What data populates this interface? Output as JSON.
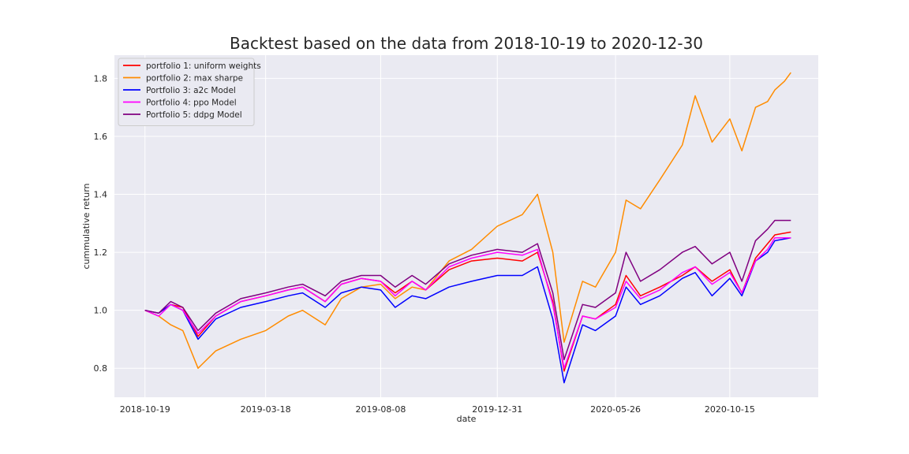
{
  "chart_data": {
    "type": "line",
    "title": "Backtest based on the data from 2018-10-19 to 2020-12-30",
    "xlabel": "date",
    "ylabel": "cummulative return",
    "ylim": [
      0.7,
      1.88
    ],
    "x_date_range": [
      "2018-10-19",
      "2020-12-30"
    ],
    "xlim": [
      "2018-09-11",
      "2021-02-02"
    ],
    "x_ticks": [
      "2018-10-19",
      "2019-03-18",
      "2019-08-08",
      "2019-12-31",
      "2020-05-26",
      "2020-10-15"
    ],
    "y_ticks": [
      0.8,
      1.0,
      1.2,
      1.4,
      1.6,
      1.8
    ],
    "grid": true,
    "legend_position": "top-left",
    "background": "#eaeaf2",
    "series": [
      {
        "name": "portfolio 1: uniform weights",
        "color": "#ff0000",
        "points": [
          [
            "2018-10-19",
            1.0
          ],
          [
            "2018-11-05",
            0.99
          ],
          [
            "2018-11-20",
            1.02
          ],
          [
            "2018-12-05",
            1.01
          ],
          [
            "2018-12-24",
            0.91
          ],
          [
            "2019-01-15",
            0.98
          ],
          [
            "2019-02-15",
            1.03
          ],
          [
            "2019-03-18",
            1.05
          ],
          [
            "2019-04-15",
            1.07
          ],
          [
            "2019-05-03",
            1.08
          ],
          [
            "2019-05-31",
            1.03
          ],
          [
            "2019-06-20",
            1.09
          ],
          [
            "2019-07-15",
            1.11
          ],
          [
            "2019-08-08",
            1.1
          ],
          [
            "2019-08-26",
            1.06
          ],
          [
            "2019-09-16",
            1.1
          ],
          [
            "2019-10-03",
            1.07
          ],
          [
            "2019-11-01",
            1.14
          ],
          [
            "2019-11-29",
            1.17
          ],
          [
            "2019-12-31",
            1.18
          ],
          [
            "2020-01-31",
            1.17
          ],
          [
            "2020-02-19",
            1.2
          ],
          [
            "2020-03-09",
            1.03
          ],
          [
            "2020-03-23",
            0.79
          ],
          [
            "2020-04-15",
            0.98
          ],
          [
            "2020-05-01",
            0.97
          ],
          [
            "2020-05-26",
            1.02
          ],
          [
            "2020-06-08",
            1.12
          ],
          [
            "2020-06-26",
            1.05
          ],
          [
            "2020-07-20",
            1.08
          ],
          [
            "2020-08-17",
            1.12
          ],
          [
            "2020-09-02",
            1.15
          ],
          [
            "2020-09-23",
            1.1
          ],
          [
            "2020-10-15",
            1.14
          ],
          [
            "2020-10-30",
            1.06
          ],
          [
            "2020-11-16",
            1.18
          ],
          [
            "2020-12-01",
            1.23
          ],
          [
            "2020-12-10",
            1.26
          ],
          [
            "2020-12-30",
            1.27
          ]
        ]
      },
      {
        "name": "portfolio 2: max sharpe",
        "color": "#ff8c00",
        "points": [
          [
            "2018-10-19",
            1.0
          ],
          [
            "2018-11-05",
            0.98
          ],
          [
            "2018-11-20",
            0.95
          ],
          [
            "2018-12-05",
            0.93
          ],
          [
            "2018-12-24",
            0.8
          ],
          [
            "2019-01-15",
            0.86
          ],
          [
            "2019-02-15",
            0.9
          ],
          [
            "2019-03-18",
            0.93
          ],
          [
            "2019-04-15",
            0.98
          ],
          [
            "2019-05-03",
            1.0
          ],
          [
            "2019-05-31",
            0.95
          ],
          [
            "2019-06-20",
            1.04
          ],
          [
            "2019-07-15",
            1.08
          ],
          [
            "2019-08-08",
            1.09
          ],
          [
            "2019-08-26",
            1.04
          ],
          [
            "2019-09-16",
            1.08
          ],
          [
            "2019-10-03",
            1.07
          ],
          [
            "2019-11-01",
            1.17
          ],
          [
            "2019-11-29",
            1.21
          ],
          [
            "2019-12-31",
            1.29
          ],
          [
            "2020-01-31",
            1.33
          ],
          [
            "2020-02-19",
            1.4
          ],
          [
            "2020-03-09",
            1.2
          ],
          [
            "2020-03-23",
            0.89
          ],
          [
            "2020-04-15",
            1.1
          ],
          [
            "2020-05-01",
            1.08
          ],
          [
            "2020-05-26",
            1.2
          ],
          [
            "2020-06-08",
            1.38
          ],
          [
            "2020-06-26",
            1.35
          ],
          [
            "2020-07-20",
            1.45
          ],
          [
            "2020-08-17",
            1.57
          ],
          [
            "2020-09-02",
            1.74
          ],
          [
            "2020-09-23",
            1.58
          ],
          [
            "2020-10-15",
            1.66
          ],
          [
            "2020-10-30",
            1.55
          ],
          [
            "2020-11-16",
            1.7
          ],
          [
            "2020-12-01",
            1.72
          ],
          [
            "2020-12-10",
            1.76
          ],
          [
            "2020-12-22",
            1.79
          ],
          [
            "2020-12-30",
            1.82
          ]
        ]
      },
      {
        "name": "Portfolio 3: a2c Model",
        "color": "#0000ff",
        "points": [
          [
            "2018-10-19",
            1.0
          ],
          [
            "2018-11-05",
            0.99
          ],
          [
            "2018-11-20",
            1.02
          ],
          [
            "2018-12-05",
            1.0
          ],
          [
            "2018-12-24",
            0.9
          ],
          [
            "2019-01-15",
            0.97
          ],
          [
            "2019-02-15",
            1.01
          ],
          [
            "2019-03-18",
            1.03
          ],
          [
            "2019-04-15",
            1.05
          ],
          [
            "2019-05-03",
            1.06
          ],
          [
            "2019-05-31",
            1.01
          ],
          [
            "2019-06-20",
            1.06
          ],
          [
            "2019-07-15",
            1.08
          ],
          [
            "2019-08-08",
            1.07
          ],
          [
            "2019-08-26",
            1.01
          ],
          [
            "2019-09-16",
            1.05
          ],
          [
            "2019-10-03",
            1.04
          ],
          [
            "2019-11-01",
            1.08
          ],
          [
            "2019-11-29",
            1.1
          ],
          [
            "2019-12-31",
            1.12
          ],
          [
            "2020-01-31",
            1.12
          ],
          [
            "2020-02-19",
            1.15
          ],
          [
            "2020-03-09",
            0.97
          ],
          [
            "2020-03-23",
            0.75
          ],
          [
            "2020-04-15",
            0.95
          ],
          [
            "2020-05-01",
            0.93
          ],
          [
            "2020-05-26",
            0.98
          ],
          [
            "2020-06-08",
            1.08
          ],
          [
            "2020-06-26",
            1.02
          ],
          [
            "2020-07-20",
            1.05
          ],
          [
            "2020-08-17",
            1.11
          ],
          [
            "2020-09-02",
            1.13
          ],
          [
            "2020-09-23",
            1.05
          ],
          [
            "2020-10-15",
            1.11
          ],
          [
            "2020-10-30",
            1.05
          ],
          [
            "2020-11-16",
            1.17
          ],
          [
            "2020-12-01",
            1.2
          ],
          [
            "2020-12-10",
            1.24
          ],
          [
            "2020-12-30",
            1.25
          ]
        ]
      },
      {
        "name": "Portfolio 4: ppo Model",
        "color": "#ff00ff",
        "points": [
          [
            "2018-10-19",
            1.0
          ],
          [
            "2018-11-05",
            0.98
          ],
          [
            "2018-11-20",
            1.02
          ],
          [
            "2018-12-05",
            1.0
          ],
          [
            "2018-12-24",
            0.92
          ],
          [
            "2019-01-15",
            0.98
          ],
          [
            "2019-02-15",
            1.03
          ],
          [
            "2019-03-18",
            1.05
          ],
          [
            "2019-04-15",
            1.07
          ],
          [
            "2019-05-03",
            1.08
          ],
          [
            "2019-05-31",
            1.03
          ],
          [
            "2019-06-20",
            1.09
          ],
          [
            "2019-07-15",
            1.11
          ],
          [
            "2019-08-08",
            1.1
          ],
          [
            "2019-08-26",
            1.05
          ],
          [
            "2019-09-16",
            1.1
          ],
          [
            "2019-10-03",
            1.07
          ],
          [
            "2019-11-01",
            1.15
          ],
          [
            "2019-11-29",
            1.18
          ],
          [
            "2019-12-31",
            1.2
          ],
          [
            "2020-01-31",
            1.19
          ],
          [
            "2020-02-19",
            1.21
          ],
          [
            "2020-03-09",
            1.02
          ],
          [
            "2020-03-23",
            0.8
          ],
          [
            "2020-04-15",
            0.98
          ],
          [
            "2020-05-01",
            0.97
          ],
          [
            "2020-05-26",
            1.01
          ],
          [
            "2020-06-08",
            1.1
          ],
          [
            "2020-06-26",
            1.04
          ],
          [
            "2020-07-20",
            1.07
          ],
          [
            "2020-08-17",
            1.13
          ],
          [
            "2020-09-02",
            1.15
          ],
          [
            "2020-09-23",
            1.09
          ],
          [
            "2020-10-15",
            1.13
          ],
          [
            "2020-10-30",
            1.06
          ],
          [
            "2020-11-16",
            1.17
          ],
          [
            "2020-12-01",
            1.21
          ],
          [
            "2020-12-10",
            1.25
          ],
          [
            "2020-12-30",
            1.25
          ]
        ]
      },
      {
        "name": "Portfolio 5: ddpg Model",
        "color": "#800080",
        "points": [
          [
            "2018-10-19",
            1.0
          ],
          [
            "2018-11-05",
            0.99
          ],
          [
            "2018-11-20",
            1.03
          ],
          [
            "2018-12-05",
            1.01
          ],
          [
            "2018-12-24",
            0.93
          ],
          [
            "2019-01-15",
            0.99
          ],
          [
            "2019-02-15",
            1.04
          ],
          [
            "2019-03-18",
            1.06
          ],
          [
            "2019-04-15",
            1.08
          ],
          [
            "2019-05-03",
            1.09
          ],
          [
            "2019-05-31",
            1.05
          ],
          [
            "2019-06-20",
            1.1
          ],
          [
            "2019-07-15",
            1.12
          ],
          [
            "2019-08-08",
            1.12
          ],
          [
            "2019-08-26",
            1.08
          ],
          [
            "2019-09-16",
            1.12
          ],
          [
            "2019-10-03",
            1.09
          ],
          [
            "2019-11-01",
            1.16
          ],
          [
            "2019-11-29",
            1.19
          ],
          [
            "2019-12-31",
            1.21
          ],
          [
            "2020-01-31",
            1.2
          ],
          [
            "2020-02-19",
            1.23
          ],
          [
            "2020-03-09",
            1.06
          ],
          [
            "2020-03-23",
            0.83
          ],
          [
            "2020-04-15",
            1.02
          ],
          [
            "2020-05-01",
            1.01
          ],
          [
            "2020-05-26",
            1.06
          ],
          [
            "2020-06-08",
            1.2
          ],
          [
            "2020-06-26",
            1.1
          ],
          [
            "2020-07-20",
            1.14
          ],
          [
            "2020-08-17",
            1.2
          ],
          [
            "2020-09-02",
            1.22
          ],
          [
            "2020-09-23",
            1.16
          ],
          [
            "2020-10-15",
            1.2
          ],
          [
            "2020-10-30",
            1.1
          ],
          [
            "2020-11-16",
            1.24
          ],
          [
            "2020-12-01",
            1.28
          ],
          [
            "2020-12-10",
            1.31
          ],
          [
            "2020-12-30",
            1.31
          ]
        ]
      }
    ]
  }
}
